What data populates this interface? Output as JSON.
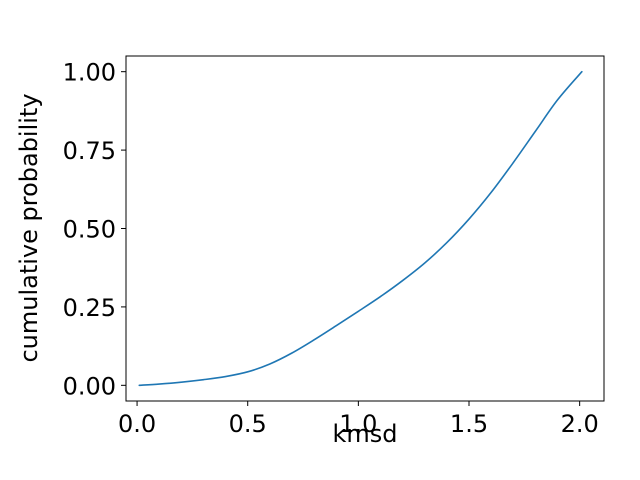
{
  "chart_data": {
    "type": "line",
    "title": "",
    "xlabel": "kmsd",
    "ylabel": "cumulative probability",
    "xlim": [
      -0.05,
      2.11
    ],
    "ylim": [
      -0.05,
      1.05
    ],
    "xticks": [
      0.0,
      0.5,
      1.0,
      1.5,
      2.0
    ],
    "xtick_labels": [
      "0.0",
      "0.5",
      "1.0",
      "1.5",
      "2.0"
    ],
    "yticks": [
      0.0,
      0.25,
      0.5,
      0.75,
      1.0
    ],
    "ytick_labels": [
      "0.00",
      "0.25",
      "0.50",
      "0.75",
      "1.00"
    ],
    "grid": false,
    "legend": "none",
    "series": [
      {
        "color": "#1f77b4",
        "x": [
          0.01,
          0.1,
          0.2,
          0.3,
          0.4,
          0.5,
          0.6,
          0.7,
          0.8,
          0.9,
          1.0,
          1.1,
          1.2,
          1.3,
          1.4,
          1.5,
          1.6,
          1.7,
          1.8,
          1.9,
          2.01
        ],
        "y": [
          0.0,
          0.004,
          0.01,
          0.018,
          0.028,
          0.043,
          0.068,
          0.103,
          0.145,
          0.19,
          0.236,
          0.283,
          0.334,
          0.39,
          0.455,
          0.53,
          0.615,
          0.71,
          0.81,
          0.91,
          1.0
        ]
      }
    ]
  }
}
